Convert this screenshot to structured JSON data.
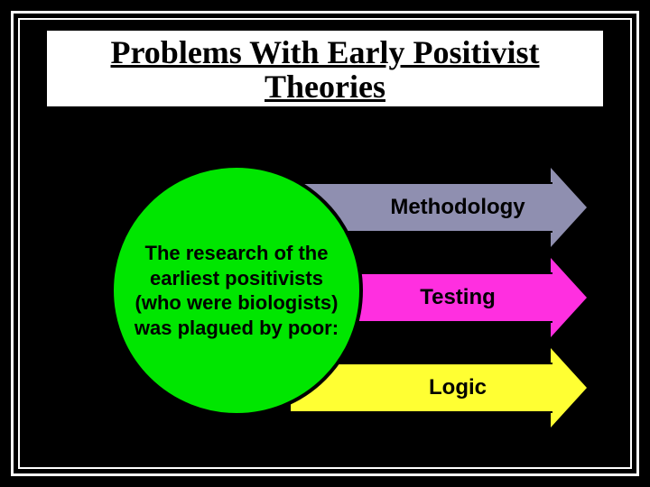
{
  "slide": {
    "background_color": "#000000",
    "border_color": "#ffffff",
    "title": "Problems With Early Positivist Theories",
    "title_fontsize": 36,
    "title_color": "#000000",
    "title_bg": "#ffffff",
    "circle": {
      "text": "The research of the earliest positivists (who were biologists) was plagued by poor:",
      "fill": "#00e600",
      "text_color": "#000000",
      "fontsize": 22,
      "diameter": 280
    },
    "arrows": [
      {
        "label": "Methodology",
        "fill": "#8f8fb0",
        "head_fill": "#8f8fb0"
      },
      {
        "label": "Testing",
        "fill": "#ff2fe0",
        "head_fill": "#ff2fe0"
      },
      {
        "label": "Logic",
        "fill": "#ffff33",
        "head_fill": "#ffff33"
      }
    ],
    "arrow_label_fontsize": 24,
    "arrow_height": 56,
    "arrow_body_width": 290
  }
}
